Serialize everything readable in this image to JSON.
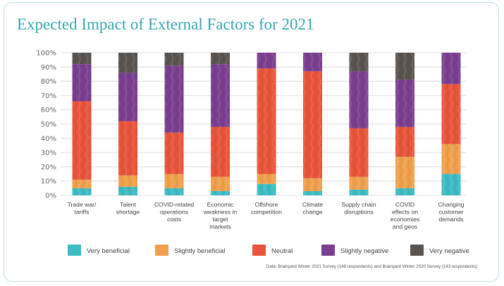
{
  "chart_data": {
    "type": "bar",
    "stacked": true,
    "title": "Expected Impact of External Factors for 2021",
    "categories": [
      [
        "Trade war/",
        "tariffs"
      ],
      [
        "Talent",
        "shortage"
      ],
      [
        "COVID-related",
        "operations",
        "costs"
      ],
      [
        "Economic",
        "weakness in",
        "target",
        "markets"
      ],
      [
        "Offshore",
        "competition"
      ],
      [
        "Climate",
        "change"
      ],
      [
        "Supply chain",
        "disruptions"
      ],
      [
        "COVID",
        "effects on",
        "economies",
        "and geos"
      ],
      [
        "Changing",
        "customer",
        "demands"
      ]
    ],
    "series": [
      {
        "name": "Very beneficial",
        "color": "#3dbcc4",
        "values": [
          5,
          6,
          5,
          3,
          8,
          3,
          4,
          5,
          15
        ]
      },
      {
        "name": "Slightly beneficial",
        "color": "#f0a04c",
        "values": [
          6,
          8,
          10,
          10,
          7,
          9,
          9,
          22,
          21
        ]
      },
      {
        "name": "Neutral",
        "color": "#e8553b",
        "values": [
          55,
          38,
          29,
          35,
          74,
          75,
          34,
          21,
          42
        ]
      },
      {
        "name": "Slightly negative",
        "color": "#7a3f8f",
        "values": [
          26,
          34,
          47,
          44,
          11,
          13,
          40,
          33,
          22
        ]
      },
      {
        "name": "Very negative",
        "color": "#5a5450",
        "values": [
          8,
          14,
          9,
          8,
          0,
          0,
          13,
          19,
          0
        ]
      }
    ],
    "yticks": [
      "0%",
      "10%",
      "20%",
      "30%",
      "40%",
      "50%",
      "60%",
      "70%",
      "80%",
      "90%",
      "100%"
    ],
    "ylim": [
      0,
      100
    ],
    "grid": true,
    "legend_position": "bottom"
  },
  "source_note": "Data: Brainyard Winter 2021 Survey (148 respondents) and Brainyard Winter 2020 Survey (143 respondents)"
}
